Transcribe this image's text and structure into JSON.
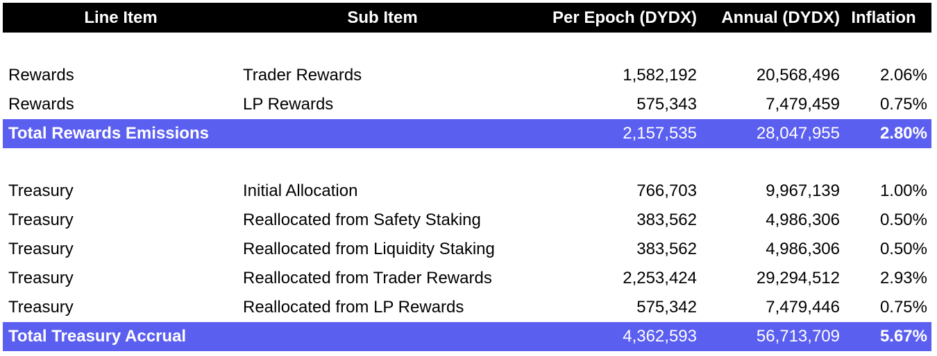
{
  "headers": [
    "Line Item",
    "Sub Item",
    "Per Epoch (DYDX)",
    "Annual (DYDX)",
    "Inflation"
  ],
  "rewards_rows": [
    {
      "line_item": "Rewards",
      "sub_item": "Trader Rewards",
      "per_epoch": "1,582,192",
      "annual": "20,568,496",
      "inflation": "2.06%"
    },
    {
      "line_item": "Rewards",
      "sub_item": "LP Rewards",
      "per_epoch": "575,343",
      "annual": "7,479,459",
      "inflation": "0.75%"
    }
  ],
  "rewards_total": {
    "label": "Total Rewards Emissions",
    "per_epoch": "2,157,535",
    "annual": "28,047,955",
    "inflation": "2.80%"
  },
  "treasury_rows": [
    {
      "line_item": "Treasury",
      "sub_item": "Initial Allocation",
      "per_epoch": "766,703",
      "annual": "9,967,139",
      "inflation": "1.00%"
    },
    {
      "line_item": "Treasury",
      "sub_item": "Reallocated from Safety Staking",
      "per_epoch": "383,562",
      "annual": "4,986,306",
      "inflation": "0.50%"
    },
    {
      "line_item": "Treasury",
      "sub_item": "Reallocated from Liquidity Staking",
      "per_epoch": "383,562",
      "annual": "4,986,306",
      "inflation": "0.50%"
    },
    {
      "line_item": "Treasury",
      "sub_item": "Reallocated from Trader Rewards",
      "per_epoch": "2,253,424",
      "annual": "29,294,512",
      "inflation": "2.93%"
    },
    {
      "line_item": "Treasury",
      "sub_item": "Reallocated from LP Rewards",
      "per_epoch": "575,342",
      "annual": "7,479,446",
      "inflation": "0.75%"
    }
  ],
  "treasury_total": {
    "label": "Total Treasury Accrual",
    "per_epoch": "4,362,593",
    "annual": "56,713,709",
    "inflation": "5.67%"
  },
  "colors": {
    "header_bg": "#000000",
    "total_bg": "#5b5ff0",
    "total_text": "#ffffff"
  }
}
